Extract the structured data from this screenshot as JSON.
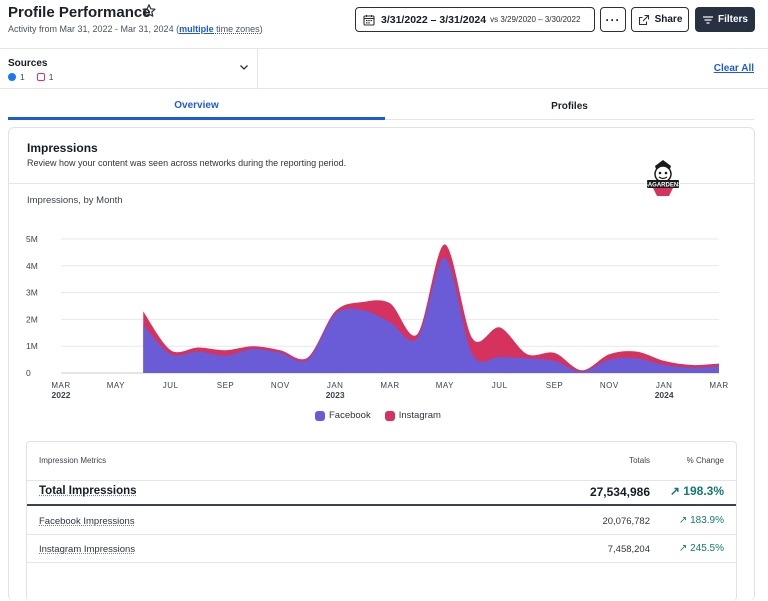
{
  "header": {
    "title": "Profile Performance",
    "activity_prefix": "Activity from Mar 31, 2022 - Mar 31, 2024 (",
    "activity_link": "multiple",
    "activity_suffix": " time zones)",
    "date_range": "3/31/2022 – 3/31/2024",
    "compare_range": "vs 3/29/2020 – 3/30/2022",
    "more_label": "···",
    "share_label": "Share",
    "filters_label": "Filters"
  },
  "sources": {
    "label": "Sources",
    "facebook_count": "1",
    "instagram_count": "1",
    "clear_all": "Clear All"
  },
  "tabs": [
    {
      "label": "Overview",
      "active": true
    },
    {
      "label": "Profiles",
      "active": false
    }
  ],
  "card": {
    "title": "Impressions",
    "description": "Review how your content was seen across networks during the reporting period.",
    "chart_subtitle": "Impressions, by Month",
    "logo_text": "SAGARDENS"
  },
  "colors": {
    "facebook": "#6a5bd6",
    "instagram": "#d5325e",
    "accent": "#1e5bd7",
    "positive": "#117a72"
  },
  "chart_data": {
    "type": "area",
    "stacked": true,
    "yticks": [
      "0",
      "1M",
      "2M",
      "3M",
      "4M",
      "5M"
    ],
    "ylim": [
      0,
      5000000
    ],
    "x_tick_labels": [
      {
        "month": "MAR",
        "year": "2022"
      },
      {
        "month": "MAY",
        "year": ""
      },
      {
        "month": "JUL",
        "year": ""
      },
      {
        "month": "SEP",
        "year": ""
      },
      {
        "month": "NOV",
        "year": ""
      },
      {
        "month": "JAN",
        "year": "2023"
      },
      {
        "month": "MAR",
        "year": ""
      },
      {
        "month": "MAY",
        "year": ""
      },
      {
        "month": "JUL",
        "year": ""
      },
      {
        "month": "SEP",
        "year": ""
      },
      {
        "month": "NOV",
        "year": ""
      },
      {
        "month": "JAN",
        "year": "2024"
      },
      {
        "month": "MAR",
        "year": ""
      }
    ],
    "x": [
      "2022-03",
      "2022-04",
      "2022-05",
      "2022-06",
      "2022-07",
      "2022-08",
      "2022-09",
      "2022-10",
      "2022-11",
      "2022-12",
      "2023-01",
      "2023-02",
      "2023-03",
      "2023-04",
      "2023-05",
      "2023-06",
      "2023-07",
      "2023-08",
      "2023-09",
      "2023-10",
      "2023-11",
      "2023-12",
      "2024-01",
      "2024-02",
      "2024-03"
    ],
    "series": [
      {
        "name": "Facebook",
        "values": [
          0,
          0,
          0,
          1800000,
          700000,
          800000,
          650000,
          900000,
          750000,
          500000,
          2200000,
          2350000,
          1900000,
          1300000,
          4300000,
          700000,
          600000,
          550000,
          450000,
          50000,
          500000,
          550000,
          300000,
          200000,
          250000
        ]
      },
      {
        "name": "Instagram",
        "values": [
          0,
          0,
          0,
          500000,
          150000,
          150000,
          200000,
          100000,
          100000,
          80000,
          100000,
          300000,
          700000,
          150000,
          500000,
          600000,
          1100000,
          150000,
          300000,
          50000,
          200000,
          250000,
          150000,
          100000,
          100000
        ]
      }
    ]
  },
  "legend": [
    {
      "label": "Facebook"
    },
    {
      "label": "Instagram"
    }
  ],
  "metrics": {
    "header_label": "Impression Metrics",
    "header_totals": "Totals",
    "header_change": "% Change",
    "rows": [
      {
        "label": "Total Impressions",
        "total": "27,534,986",
        "change": "198.3%"
      },
      {
        "label": "Facebook Impressions",
        "total": "20,076,782",
        "change": "183.9%"
      },
      {
        "label": "Instagram Impressions",
        "total": "7,458,204",
        "change": "245.5%"
      }
    ]
  }
}
